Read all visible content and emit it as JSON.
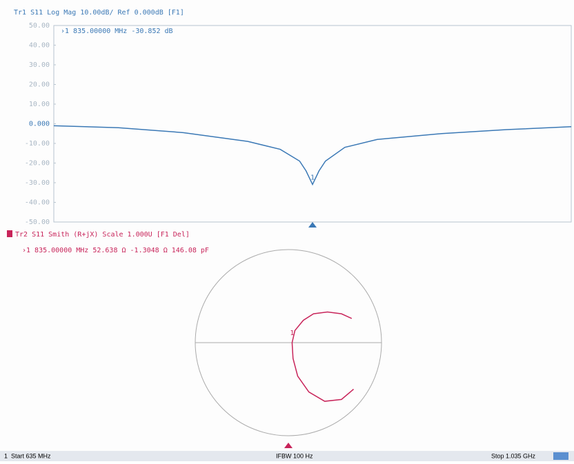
{
  "chart_data": [
    {
      "type": "line",
      "title": "Tr1 S11 Log Mag 10.00dB/ Ref 0.000dB [F1]",
      "marker_readout": "›1  835.00000 MHz -30.852 dB",
      "marker_number": "1",
      "x": [
        635,
        685,
        735,
        785,
        810,
        825,
        830,
        835,
        840,
        845,
        860,
        885,
        935,
        985,
        1035
      ],
      "xlim": [
        635,
        1035
      ],
      "series": [
        {
          "name": "S11",
          "color": "#3a78b5",
          "values": [
            -1,
            -2,
            -4.5,
            -9,
            -13,
            -19,
            -24,
            -30.9,
            -24,
            -19,
            -12,
            -8,
            -5,
            -3,
            -1.5
          ]
        }
      ],
      "ylim": [
        -50,
        50
      ],
      "yticks": [
        {
          "value": 50,
          "label": "50.00"
        },
        {
          "value": 40,
          "label": "40.00"
        },
        {
          "value": 30,
          "label": "30.00"
        },
        {
          "value": 20,
          "label": "20.00"
        },
        {
          "value": 10,
          "label": "10.00"
        },
        {
          "value": 0,
          "label": "0.000"
        },
        {
          "value": -10,
          "label": "-10.00"
        },
        {
          "value": -20,
          "label": "-20.00"
        },
        {
          "value": -30,
          "label": "-30.00"
        },
        {
          "value": -40,
          "label": "-40.00"
        },
        {
          "value": -50,
          "label": "-50.00"
        }
      ]
    },
    {
      "type": "smith",
      "title": "Tr2 S11 Smith (R+jX) Scale 1.000U [F1 Del]",
      "marker_readout": "›1  835.00000 MHz  52.638 Ω -1.3048 Ω  146.08 pF",
      "marker_number": "1",
      "series": [
        {
          "name": "S11",
          "color": "#c8245a",
          "real": [
            0.68,
            0.57,
            0.42,
            0.27,
            0.16,
            0.07,
            0.04,
            0.05,
            0.1,
            0.22,
            0.39,
            0.57,
            0.7
          ],
          "imag": [
            0.26,
            0.31,
            0.33,
            0.31,
            0.24,
            0.13,
            0.0,
            -0.17,
            -0.36,
            -0.53,
            -0.63,
            -0.61,
            -0.5
          ]
        }
      ]
    }
  ],
  "status_bar": {
    "channel": "1",
    "start": "Start 635 MHz",
    "ifbw": "IFBW 100 Hz",
    "stop": "Stop 1.035 GHz"
  }
}
